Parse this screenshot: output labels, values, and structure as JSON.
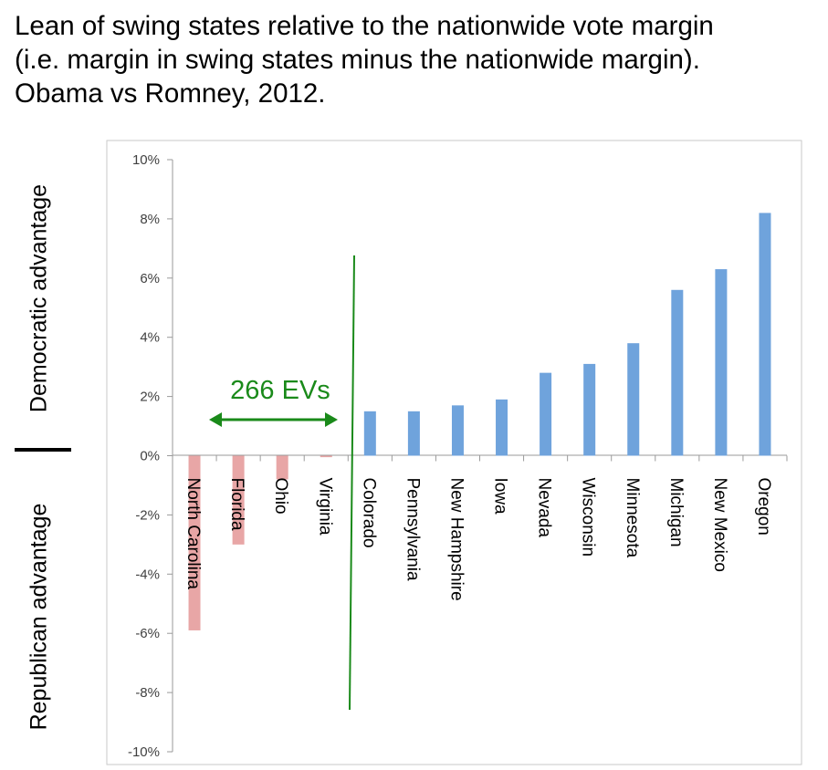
{
  "title_lines": [
    "Lean of swing states relative to the nationwide vote margin",
    "(i.e. margin in swing states minus the nationwide margin).",
    "Obama vs Romney, 2012."
  ],
  "side_labels": {
    "top": "Democratic advantage",
    "bottom": "Republican advantage"
  },
  "annotation": {
    "text": "266 EVs",
    "color": "#1a8a1a"
  },
  "colors": {
    "democratic": "#6fa3dc",
    "republican": "#e8a6a6",
    "divider": "#1a8a1a"
  },
  "chart_data": {
    "type": "bar",
    "title": "",
    "xlabel": "",
    "ylabel": "",
    "ylim": [
      -10,
      10
    ],
    "y_ticks": [
      "-10%",
      "-8%",
      "-6%",
      "-4%",
      "-2%",
      "0%",
      "2%",
      "4%",
      "6%",
      "8%",
      "10%"
    ],
    "categories": [
      "North Carolina",
      "Florida",
      "Ohio",
      "Virginia",
      "Colorado",
      "Pennsylvania",
      "New Hampshire",
      "Iowa",
      "Nevada",
      "Wisconsin",
      "Minnesota",
      "Michigan",
      "New Mexico",
      "Oregon"
    ],
    "values": [
      -5.9,
      -3.0,
      -0.8,
      -0.05,
      1.5,
      1.5,
      1.7,
      1.9,
      2.8,
      3.1,
      3.8,
      5.6,
      6.3,
      8.2
    ],
    "grid": false,
    "divider_after_category": "Virginia"
  }
}
